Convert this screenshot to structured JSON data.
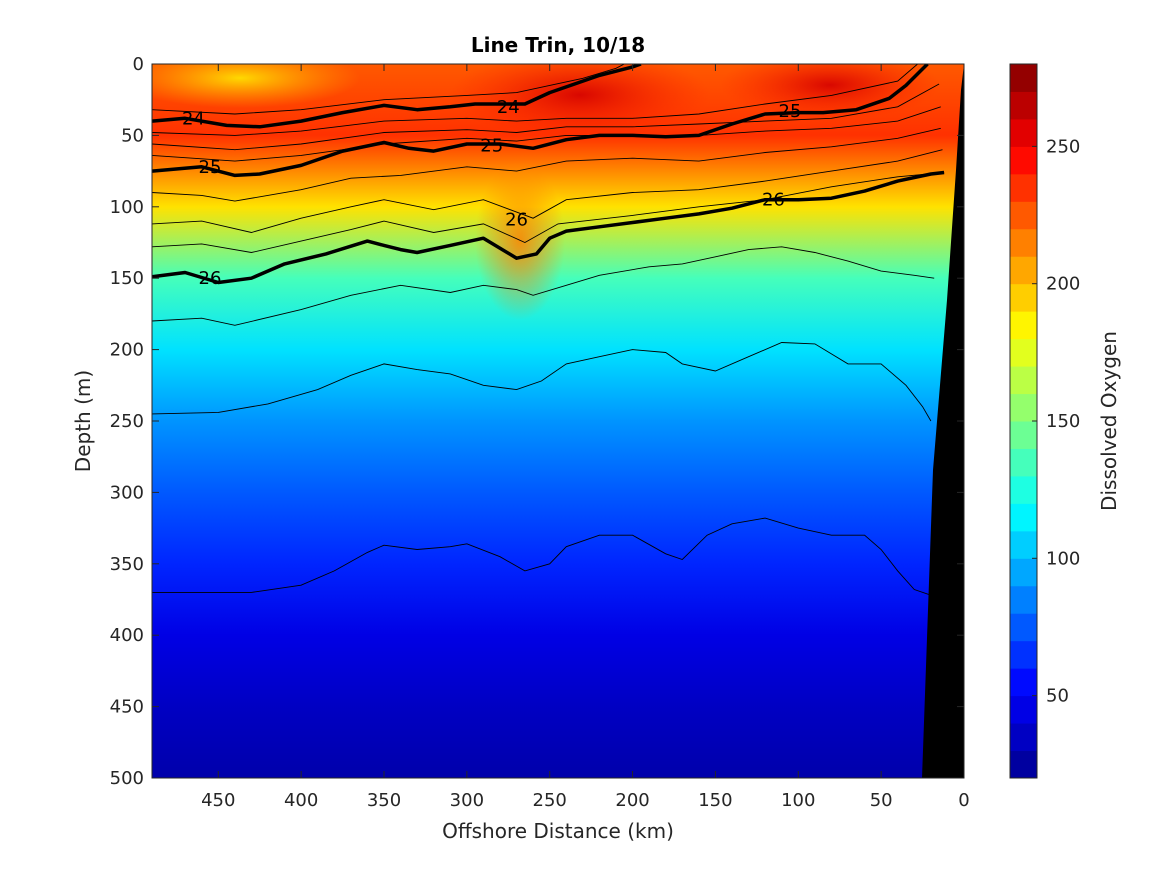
{
  "chart_data": {
    "type": "contour",
    "title": "Line Trin, 10/18",
    "xlabel": "Offshore Distance (km)",
    "ylabel": "Depth (m)",
    "colorbar_label": "Dissolved Oxygen",
    "xlim": [
      490,
      0
    ],
    "ylim": [
      500,
      0
    ],
    "x_reversed": true,
    "y_reversed": true,
    "xticks": [
      450,
      400,
      350,
      300,
      250,
      200,
      150,
      100,
      50,
      0
    ],
    "yticks": [
      0,
      50,
      100,
      150,
      200,
      250,
      300,
      350,
      400,
      450,
      500
    ],
    "colorbar_range": [
      20,
      280
    ],
    "colorbar_ticks": [
      50,
      100,
      150,
      200,
      250
    ],
    "colormap": [
      "#00008f",
      "#0000ff",
      "#0080ff",
      "#00ffff",
      "#80ff80",
      "#ffff00",
      "#ff8000",
      "#ff0000",
      "#800000"
    ],
    "oxygen_depth_profile": [
      {
        "depth": 0,
        "oxygen": 225
      },
      {
        "depth": 50,
        "oxygen": 235
      },
      {
        "depth": 100,
        "oxygen": 190
      },
      {
        "depth": 150,
        "oxygen": 135
      },
      {
        "depth": 200,
        "oxygen": 110
      },
      {
        "depth": 250,
        "oxygen": 90
      },
      {
        "depth": 300,
        "oxygen": 75
      },
      {
        "depth": 350,
        "oxygen": 62
      },
      {
        "depth": 400,
        "oxygen": 45
      },
      {
        "depth": 450,
        "oxygen": 35
      },
      {
        "depth": 500,
        "oxygen": 28
      }
    ],
    "density_contours": [
      {
        "label": "24",
        "labels_at": [
          [
            465,
            38
          ],
          [
            275,
            30
          ]
        ],
        "points": [
          [
            490,
            40
          ],
          [
            470,
            38
          ],
          [
            445,
            43
          ],
          [
            425,
            44
          ],
          [
            400,
            40
          ],
          [
            375,
            34
          ],
          [
            350,
            29
          ],
          [
            330,
            32
          ],
          [
            310,
            30
          ],
          [
            295,
            28
          ],
          [
            280,
            28
          ],
          [
            265,
            28
          ],
          [
            250,
            20
          ],
          [
            235,
            14
          ],
          [
            220,
            8
          ],
          [
            200,
            2
          ],
          [
            195,
            0
          ]
        ]
      },
      {
        "label": "25",
        "labels_at": [
          [
            455,
            72
          ],
          [
            285,
            57
          ],
          [
            105,
            33
          ]
        ],
        "points": [
          [
            490,
            75
          ],
          [
            460,
            72
          ],
          [
            440,
            78
          ],
          [
            425,
            77
          ],
          [
            400,
            71
          ],
          [
            375,
            61
          ],
          [
            350,
            55
          ],
          [
            335,
            59
          ],
          [
            320,
            61
          ],
          [
            300,
            56
          ],
          [
            280,
            56
          ],
          [
            260,
            59
          ],
          [
            240,
            53
          ],
          [
            220,
            50
          ],
          [
            200,
            50
          ],
          [
            180,
            51
          ],
          [
            160,
            50
          ],
          [
            140,
            42
          ],
          [
            120,
            35
          ],
          [
            100,
            34
          ],
          [
            85,
            34
          ],
          [
            65,
            32
          ],
          [
            45,
            24
          ],
          [
            35,
            15
          ],
          [
            22,
            0
          ]
        ]
      },
      {
        "label": "26",
        "labels_at": [
          [
            455,
            150
          ],
          [
            270,
            109
          ],
          [
            115,
            95
          ]
        ],
        "points": [
          [
            490,
            149
          ],
          [
            470,
            146
          ],
          [
            450,
            153
          ],
          [
            430,
            150
          ],
          [
            410,
            140
          ],
          [
            385,
            133
          ],
          [
            360,
            124
          ],
          [
            350,
            127
          ],
          [
            340,
            130
          ],
          [
            330,
            132
          ],
          [
            310,
            127
          ],
          [
            290,
            122
          ],
          [
            270,
            136
          ],
          [
            258,
            133
          ],
          [
            250,
            122
          ],
          [
            240,
            117
          ],
          [
            220,
            114
          ],
          [
            200,
            111
          ],
          [
            180,
            108
          ],
          [
            160,
            105
          ],
          [
            140,
            101
          ],
          [
            120,
            95
          ],
          [
            100,
            95
          ],
          [
            80,
            94
          ],
          [
            60,
            89
          ],
          [
            40,
            82
          ],
          [
            20,
            77
          ],
          [
            12,
            76
          ]
        ]
      }
    ],
    "thin_contours": [
      {
        "points": [
          [
            490,
            32
          ],
          [
            440,
            35
          ],
          [
            400,
            32
          ],
          [
            350,
            25
          ],
          [
            300,
            22
          ],
          [
            270,
            20
          ],
          [
            250,
            15
          ],
          [
            230,
            10
          ],
          [
            210,
            3
          ],
          [
            205,
            0
          ]
        ]
      },
      {
        "points": [
          [
            490,
            48
          ],
          [
            440,
            50
          ],
          [
            400,
            47
          ],
          [
            350,
            40
          ],
          [
            300,
            38
          ],
          [
            270,
            40
          ],
          [
            240,
            38
          ],
          [
            200,
            38
          ],
          [
            160,
            35
          ],
          [
            120,
            28
          ],
          [
            80,
            22
          ],
          [
            40,
            12
          ],
          [
            28,
            0
          ]
        ]
      },
      {
        "points": [
          [
            490,
            56
          ],
          [
            440,
            60
          ],
          [
            400,
            56
          ],
          [
            350,
            48
          ],
          [
            300,
            46
          ],
          [
            270,
            48
          ],
          [
            240,
            44
          ],
          [
            200,
            44
          ],
          [
            160,
            42
          ],
          [
            120,
            40
          ],
          [
            80,
            38
          ],
          [
            40,
            30
          ],
          [
            15,
            14
          ]
        ]
      },
      {
        "points": [
          [
            490,
            64
          ],
          [
            440,
            68
          ],
          [
            400,
            64
          ],
          [
            350,
            56
          ],
          [
            300,
            52
          ],
          [
            270,
            54
          ],
          [
            240,
            50
          ],
          [
            200,
            50
          ],
          [
            160,
            50
          ],
          [
            120,
            47
          ],
          [
            80,
            45
          ],
          [
            40,
            40
          ],
          [
            14,
            30
          ]
        ]
      },
      {
        "points": [
          [
            490,
            90
          ],
          [
            460,
            92
          ],
          [
            440,
            96
          ],
          [
            400,
            88
          ],
          [
            370,
            80
          ],
          [
            340,
            78
          ],
          [
            300,
            72
          ],
          [
            270,
            75
          ],
          [
            240,
            68
          ],
          [
            200,
            66
          ],
          [
            160,
            68
          ],
          [
            120,
            62
          ],
          [
            80,
            58
          ],
          [
            40,
            52
          ],
          [
            14,
            45
          ]
        ]
      },
      {
        "points": [
          [
            490,
            112
          ],
          [
            460,
            110
          ],
          [
            430,
            118
          ],
          [
            400,
            108
          ],
          [
            370,
            100
          ],
          [
            350,
            95
          ],
          [
            320,
            102
          ],
          [
            290,
            95
          ],
          [
            260,
            108
          ],
          [
            240,
            95
          ],
          [
            200,
            90
          ],
          [
            160,
            88
          ],
          [
            120,
            82
          ],
          [
            80,
            75
          ],
          [
            40,
            68
          ],
          [
            13,
            60
          ]
        ]
      },
      {
        "points": [
          [
            490,
            128
          ],
          [
            460,
            126
          ],
          [
            430,
            132
          ],
          [
            400,
            124
          ],
          [
            370,
            116
          ],
          [
            350,
            110
          ],
          [
            320,
            118
          ],
          [
            290,
            112
          ],
          [
            265,
            125
          ],
          [
            245,
            112
          ],
          [
            200,
            106
          ],
          [
            160,
            100
          ],
          [
            120,
            95
          ],
          [
            80,
            86
          ],
          [
            40,
            79
          ],
          [
            12,
            76
          ]
        ]
      },
      {
        "points": [
          [
            490,
            180
          ],
          [
            460,
            178
          ],
          [
            440,
            183
          ],
          [
            400,
            172
          ],
          [
            370,
            162
          ],
          [
            340,
            155
          ],
          [
            310,
            160
          ],
          [
            290,
            155
          ],
          [
            270,
            158
          ],
          [
            260,
            162
          ],
          [
            240,
            155
          ],
          [
            220,
            148
          ],
          [
            190,
            142
          ],
          [
            170,
            140
          ],
          [
            150,
            135
          ],
          [
            130,
            130
          ],
          [
            110,
            128
          ],
          [
            90,
            132
          ],
          [
            70,
            138
          ],
          [
            50,
            145
          ],
          [
            30,
            148
          ],
          [
            18,
            150
          ]
        ]
      },
      {
        "points": [
          [
            490,
            245
          ],
          [
            450,
            244
          ],
          [
            420,
            238
          ],
          [
            390,
            228
          ],
          [
            370,
            218
          ],
          [
            350,
            210
          ],
          [
            330,
            214
          ],
          [
            310,
            217
          ],
          [
            290,
            225
          ],
          [
            270,
            228
          ],
          [
            255,
            222
          ],
          [
            240,
            210
          ],
          [
            220,
            205
          ],
          [
            200,
            200
          ],
          [
            180,
            202
          ],
          [
            170,
            210
          ],
          [
            150,
            215
          ],
          [
            130,
            205
          ],
          [
            110,
            195
          ],
          [
            90,
            196
          ],
          [
            70,
            210
          ],
          [
            50,
            210
          ],
          [
            35,
            225
          ],
          [
            25,
            240
          ],
          [
            20,
            250
          ]
        ]
      },
      {
        "points": [
          [
            490,
            370
          ],
          [
            460,
            370
          ],
          [
            430,
            370
          ],
          [
            400,
            365
          ],
          [
            380,
            355
          ],
          [
            360,
            342
          ],
          [
            350,
            337
          ],
          [
            330,
            340
          ],
          [
            310,
            338
          ],
          [
            300,
            336
          ],
          [
            280,
            345
          ],
          [
            265,
            355
          ],
          [
            250,
            350
          ],
          [
            240,
            338
          ],
          [
            220,
            330
          ],
          [
            200,
            330
          ],
          [
            180,
            343
          ],
          [
            170,
            347
          ],
          [
            155,
            330
          ],
          [
            140,
            322
          ],
          [
            120,
            318
          ],
          [
            100,
            325
          ],
          [
            80,
            330
          ],
          [
            60,
            330
          ],
          [
            50,
            340
          ],
          [
            40,
            355
          ],
          [
            30,
            368
          ],
          [
            20,
            372
          ]
        ]
      }
    ]
  }
}
